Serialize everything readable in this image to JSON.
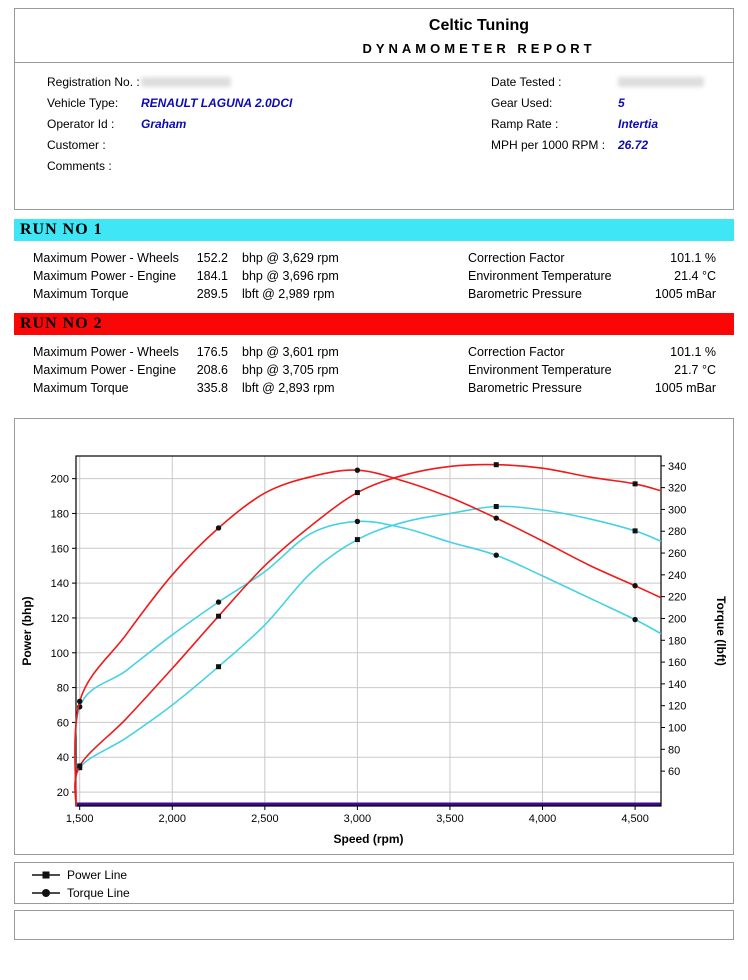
{
  "header": {
    "brand": "Celtic Tuning",
    "report_title": "DYNAMOMETER REPORT"
  },
  "info": {
    "left": [
      {
        "label": "Registration No. :",
        "value": "",
        "redacted": true
      },
      {
        "label": "Vehicle Type:",
        "value": "RENAULT LAGUNA 2.0DCI"
      },
      {
        "label": "Operator Id :",
        "value": "Graham"
      },
      {
        "label": "Customer :",
        "value": ""
      },
      {
        "label": "Comments :",
        "value": ""
      }
    ],
    "right": [
      {
        "label": "Date Tested :",
        "value": "",
        "redacted": true
      },
      {
        "label": "Gear Used:",
        "value": "5"
      },
      {
        "label": "Ramp Rate :",
        "value": "Intertia"
      },
      {
        "label": "MPH per 1000 RPM :",
        "value": "26.72"
      }
    ]
  },
  "runs": [
    {
      "title": "RUN NO 1",
      "banner_color": "#3ee6f6",
      "stats": [
        {
          "label": "Maximum Power - Wheels",
          "value": "152.2",
          "unit": "bhp @ 3,629 rpm",
          "label2": "Correction Factor",
          "value2": "101.1 %"
        },
        {
          "label": "Maximum Power - Engine",
          "value": "184.1",
          "unit": "bhp @ 3,696 rpm",
          "label2": "Environment Temperature",
          "value2": "21.4 °C"
        },
        {
          "label": "Maximum Torque",
          "value": "289.5",
          "unit": "lbft @ 2,989 rpm",
          "label2": "Barometric Pressure",
          "value2": "1005 mBar"
        }
      ]
    },
    {
      "title": "RUN NO 2",
      "banner_color": "#fb0606",
      "stats": [
        {
          "label": "Maximum Power - Wheels",
          "value": "176.5",
          "unit": "bhp @ 3,601 rpm",
          "label2": "Correction Factor",
          "value2": "101.1 %"
        },
        {
          "label": "Maximum Power - Engine",
          "value": "208.6",
          "unit": "bhp @ 3,705 rpm",
          "label2": "Environment Temperature",
          "value2": "21.7 °C"
        },
        {
          "label": "Maximum Torque",
          "value": "335.8",
          "unit": "lbft @ 2,893 rpm",
          "label2": "Barometric Pressure",
          "value2": "1005 mBar"
        }
      ]
    }
  ],
  "chart_data": {
    "type": "line",
    "xlabel": "Speed (rpm)",
    "ylabel_left": "Power (bhp)",
    "ylabel_right": "Torque (lbft)",
    "grid": true,
    "grid_color": "#c9c9c9",
    "baseline_color": "#3c0c8e",
    "marker_color": "#111111",
    "marker_every": 3,
    "x_axis": {
      "min": 1480,
      "max": 4640,
      "ticks": [
        1500,
        2000,
        2500,
        3000,
        3500,
        4000,
        4500
      ],
      "tick_labels": [
        "1,500",
        "2,000",
        "2,500",
        "3,000",
        "3,500",
        "4,000",
        "4,500"
      ]
    },
    "y_axis_left": {
      "label": "Power (bhp)",
      "min": 12,
      "max": 213,
      "ticks": [
        20,
        40,
        60,
        80,
        100,
        120,
        140,
        160,
        180,
        200
      ]
    },
    "y_axis_right": {
      "label": "Torque (lbft)",
      "min": 28,
      "max": 349,
      "ticks": [
        60,
        80,
        100,
        120,
        140,
        160,
        180,
        200,
        220,
        240,
        260,
        280,
        300,
        320,
        340
      ]
    },
    "x": [
      1500,
      1750,
      2000,
      2250,
      2500,
      2750,
      3000,
      3250,
      3500,
      3750,
      4000,
      4250,
      4500,
      4640
    ],
    "series": [
      {
        "name": "Run 1 Power (bhp)",
        "axis": "power",
        "color": "#45d2e4",
        "marker": "square",
        "values": [
          34,
          51,
          70,
          92,
          116,
          146,
          165,
          175,
          180,
          184,
          182,
          177,
          170,
          164
        ]
      },
      {
        "name": "Run 1 Torque (lbft)",
        "axis": "torque",
        "color": "#45d2e4",
        "marker": "circle",
        "values": [
          119,
          152,
          185,
          215,
          243,
          278,
          289,
          283,
          270,
          258,
          239,
          219,
          199,
          186
        ]
      },
      {
        "name": "Run 2 Power (bhp)",
        "axis": "power",
        "color": "#ef1a1a",
        "marker": "square",
        "values": [
          35,
          62,
          91,
          121,
          150,
          173,
          192,
          202,
          207,
          208,
          206,
          201,
          197,
          193
        ]
      },
      {
        "name": "Run 2 Torque (lbft)",
        "axis": "torque",
        "color": "#ef1a1a",
        "marker": "circle",
        "values": [
          124,
          185,
          240,
          283,
          315,
          330,
          336,
          326,
          311,
          292,
          271,
          249,
          230,
          219
        ]
      }
    ]
  },
  "legend": [
    {
      "marker": "square",
      "label": "Power Line"
    },
    {
      "marker": "circle",
      "label": "Torque Line"
    }
  ],
  "colors": {
    "value_text": "#0b0bb4",
    "run1": "#3ee6f6",
    "run2": "#fb0606",
    "run1_line": "#45d2e4",
    "run2_line": "#ef1a1a",
    "grid": "#c9c9c9",
    "baseline": "#3c0c8e",
    "marker": "#111111"
  }
}
